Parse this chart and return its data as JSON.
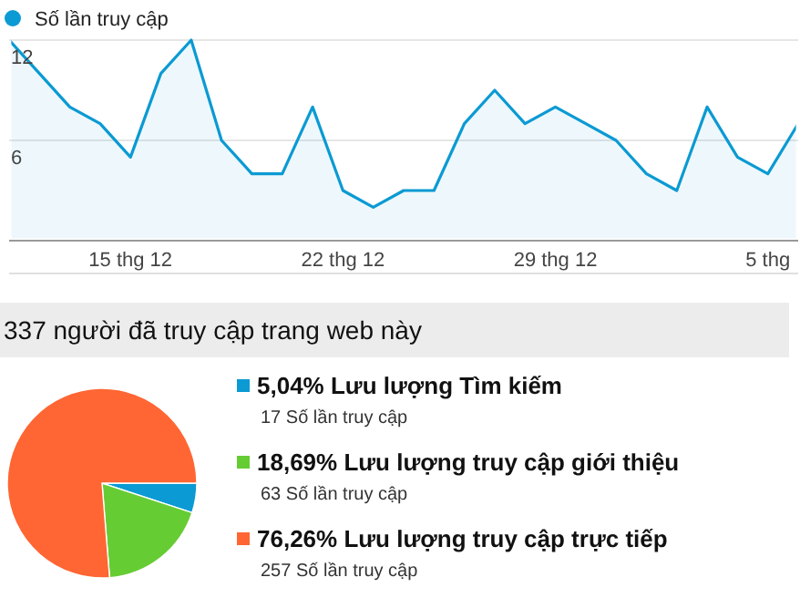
{
  "chart_data": [
    {
      "type": "area",
      "categories": [
        null,
        null,
        null,
        null,
        "15 thg 12",
        null,
        null,
        null,
        null,
        null,
        null,
        "22 thg 12",
        null,
        null,
        null,
        null,
        null,
        null,
        "29 thg 12",
        null,
        null,
        null,
        null,
        null,
        null,
        "5 thg",
        null
      ],
      "series": [
        {
          "name": "Số lần truy cập",
          "color": "#0b9ad3",
          "values": [
            12,
            10,
            8,
            7,
            5,
            10,
            12,
            6,
            4,
            4,
            8,
            3,
            2,
            3,
            3,
            7,
            9,
            7,
            8,
            7,
            6,
            4,
            3,
            8,
            5,
            4,
            7
          ]
        }
      ],
      "ylim": [
        0,
        12
      ],
      "yticks": [
        6,
        12
      ],
      "grid": "y",
      "legend": "top left"
    },
    {
      "type": "pie",
      "title": "337 người đã truy cập trang web này",
      "categories": [
        "5,04% Lưu lượng Tìm kiếm",
        "18,69% Lưu lượng truy cập giới thiệu",
        "76,26% Lưu lượng truy cập trực tiếp"
      ],
      "values": [
        5.04,
        18.69,
        76.26
      ],
      "colors": [
        "#0b9ad3",
        "#66cc33",
        "#ff6633"
      ],
      "annotations": [
        "17 Số lần truy cập",
        "63 Số lần truy cập",
        "257 Số lần truy cập"
      ],
      "legend": "right"
    }
  ]
}
